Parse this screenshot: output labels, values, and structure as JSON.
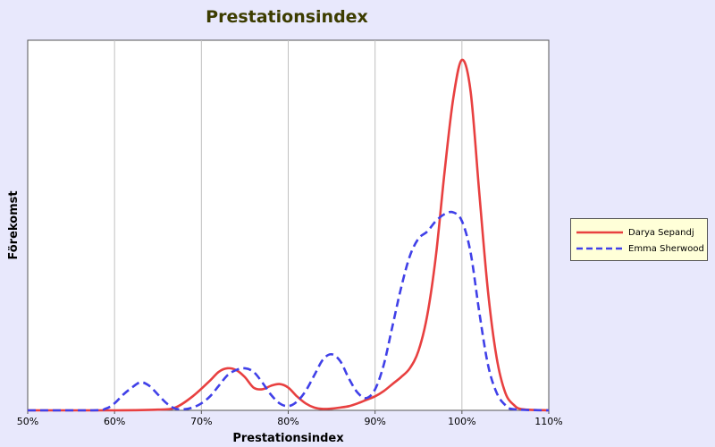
{
  "chart_data": {
    "type": "line",
    "title": "Prestationsindex",
    "xlabel": "Prestationsindex",
    "ylabel": "Förekomst",
    "xlim": [
      50,
      110
    ],
    "ylim": [
      0,
      100
    ],
    "x_ticks": [
      "50%",
      "60%",
      "70%",
      "80%",
      "90%",
      "100%",
      "110%"
    ],
    "grid": "vertical",
    "legend_position": "right",
    "series": [
      {
        "name": "Darya Sepandj",
        "color": "#e84040",
        "style": "solid",
        "x": [
          50,
          60,
          65,
          67,
          69,
          71,
          72,
          73,
          74,
          75,
          76,
          77,
          78,
          79,
          80,
          81,
          82,
          83,
          84,
          85,
          86,
          87,
          88,
          89,
          90,
          91,
          92,
          93,
          94,
          95,
          96,
          97,
          98,
          99,
          100,
          101,
          102,
          103,
          104,
          105,
          106,
          107,
          110
        ],
        "y": [
          0,
          0,
          0.2,
          0.8,
          4,
          8.5,
          11,
          12,
          11.5,
          9.5,
          6.5,
          6,
          7,
          7.5,
          6.5,
          4,
          2,
          0.8,
          0.4,
          0.5,
          0.8,
          1.2,
          2,
          3,
          4,
          5.5,
          7.5,
          9.5,
          12,
          17,
          27,
          44,
          68,
          89,
          100,
          91,
          62,
          34,
          15,
          5,
          1.5,
          0.3,
          0
        ]
      },
      {
        "name": "Emma Sherwood",
        "color": "#4040e8",
        "style": "dashed",
        "x": [
          50,
          57.5,
          59,
          60,
          61,
          62,
          63,
          64,
          65,
          66,
          67,
          68,
          69,
          70,
          71,
          72,
          73,
          74,
          75,
          76,
          77,
          78,
          79,
          80,
          81,
          82,
          83,
          84,
          85,
          86,
          87,
          88,
          89,
          90,
          91,
          92,
          93,
          94,
          95,
          96,
          97,
          98,
          99,
          100,
          101,
          102,
          103,
          104,
          105,
          106,
          110
        ],
        "y": [
          0,
          0,
          0.5,
          2,
          4.5,
          6.5,
          8,
          7,
          4.5,
          2,
          0.5,
          0.3,
          0.8,
          2,
          4,
          7,
          10,
          11.5,
          12,
          11,
          8,
          4.5,
          2,
          1.2,
          2.5,
          5.5,
          10,
          14.5,
          16,
          14,
          9,
          5,
          3.5,
          6,
          13,
          24,
          35,
          44,
          49,
          51,
          54,
          56,
          56.5,
          54,
          45,
          28,
          13,
          5,
          1.5,
          0.3,
          0
        ]
      }
    ]
  }
}
